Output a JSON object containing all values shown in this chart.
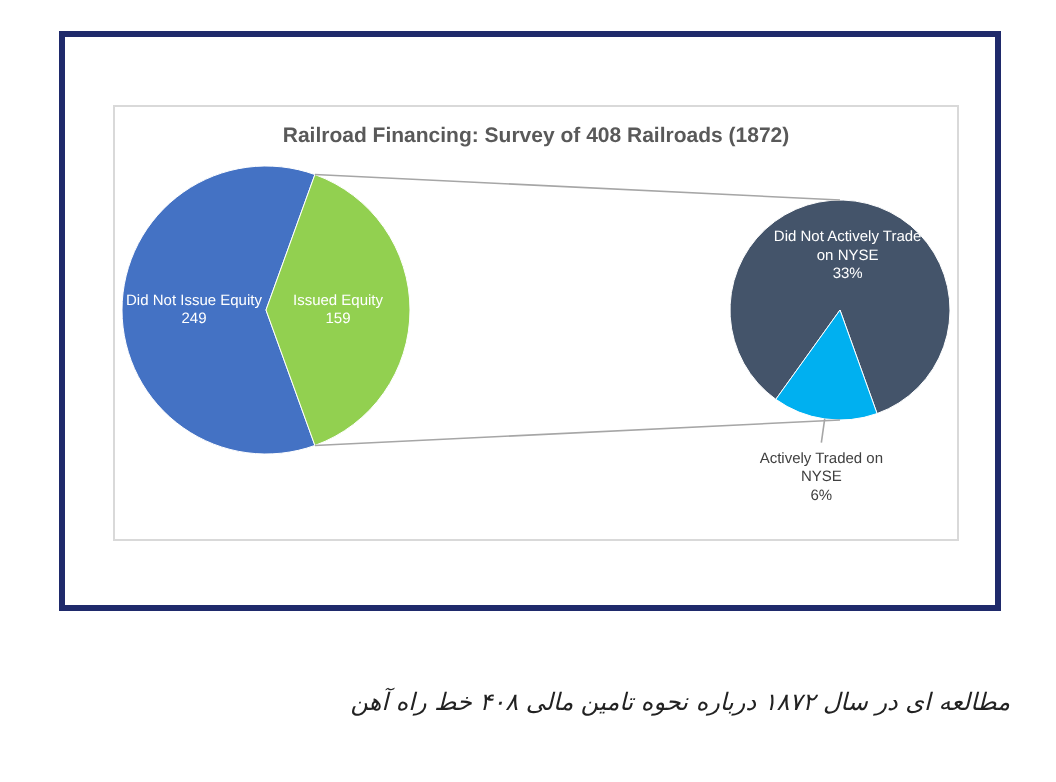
{
  "chart_data": [
    {
      "type": "pie",
      "title": "Railroad Financing: Survey of 408 Railroads (1872)",
      "categories": [
        "Did Not Issue Equity",
        "Issued Equity"
      ],
      "values": [
        249,
        159
      ],
      "colors": [
        "#4472c4",
        "#92d050"
      ],
      "data_labels": true,
      "annotations": [
        "مطالعه ای در سال ۱۸۷۲ درباره نحوه تامین مالی ۴۰۸ خط راه آهن"
      ]
    },
    {
      "type": "pie",
      "categories": [
        "Did Not Actively Trade on NYSE",
        "Actively Traded on NYSE"
      ],
      "values": [
        33,
        6
      ],
      "colors": [
        "#44546a",
        "#00b0f0"
      ],
      "value_labels": [
        "33%",
        "6%"
      ]
    }
  ]
}
